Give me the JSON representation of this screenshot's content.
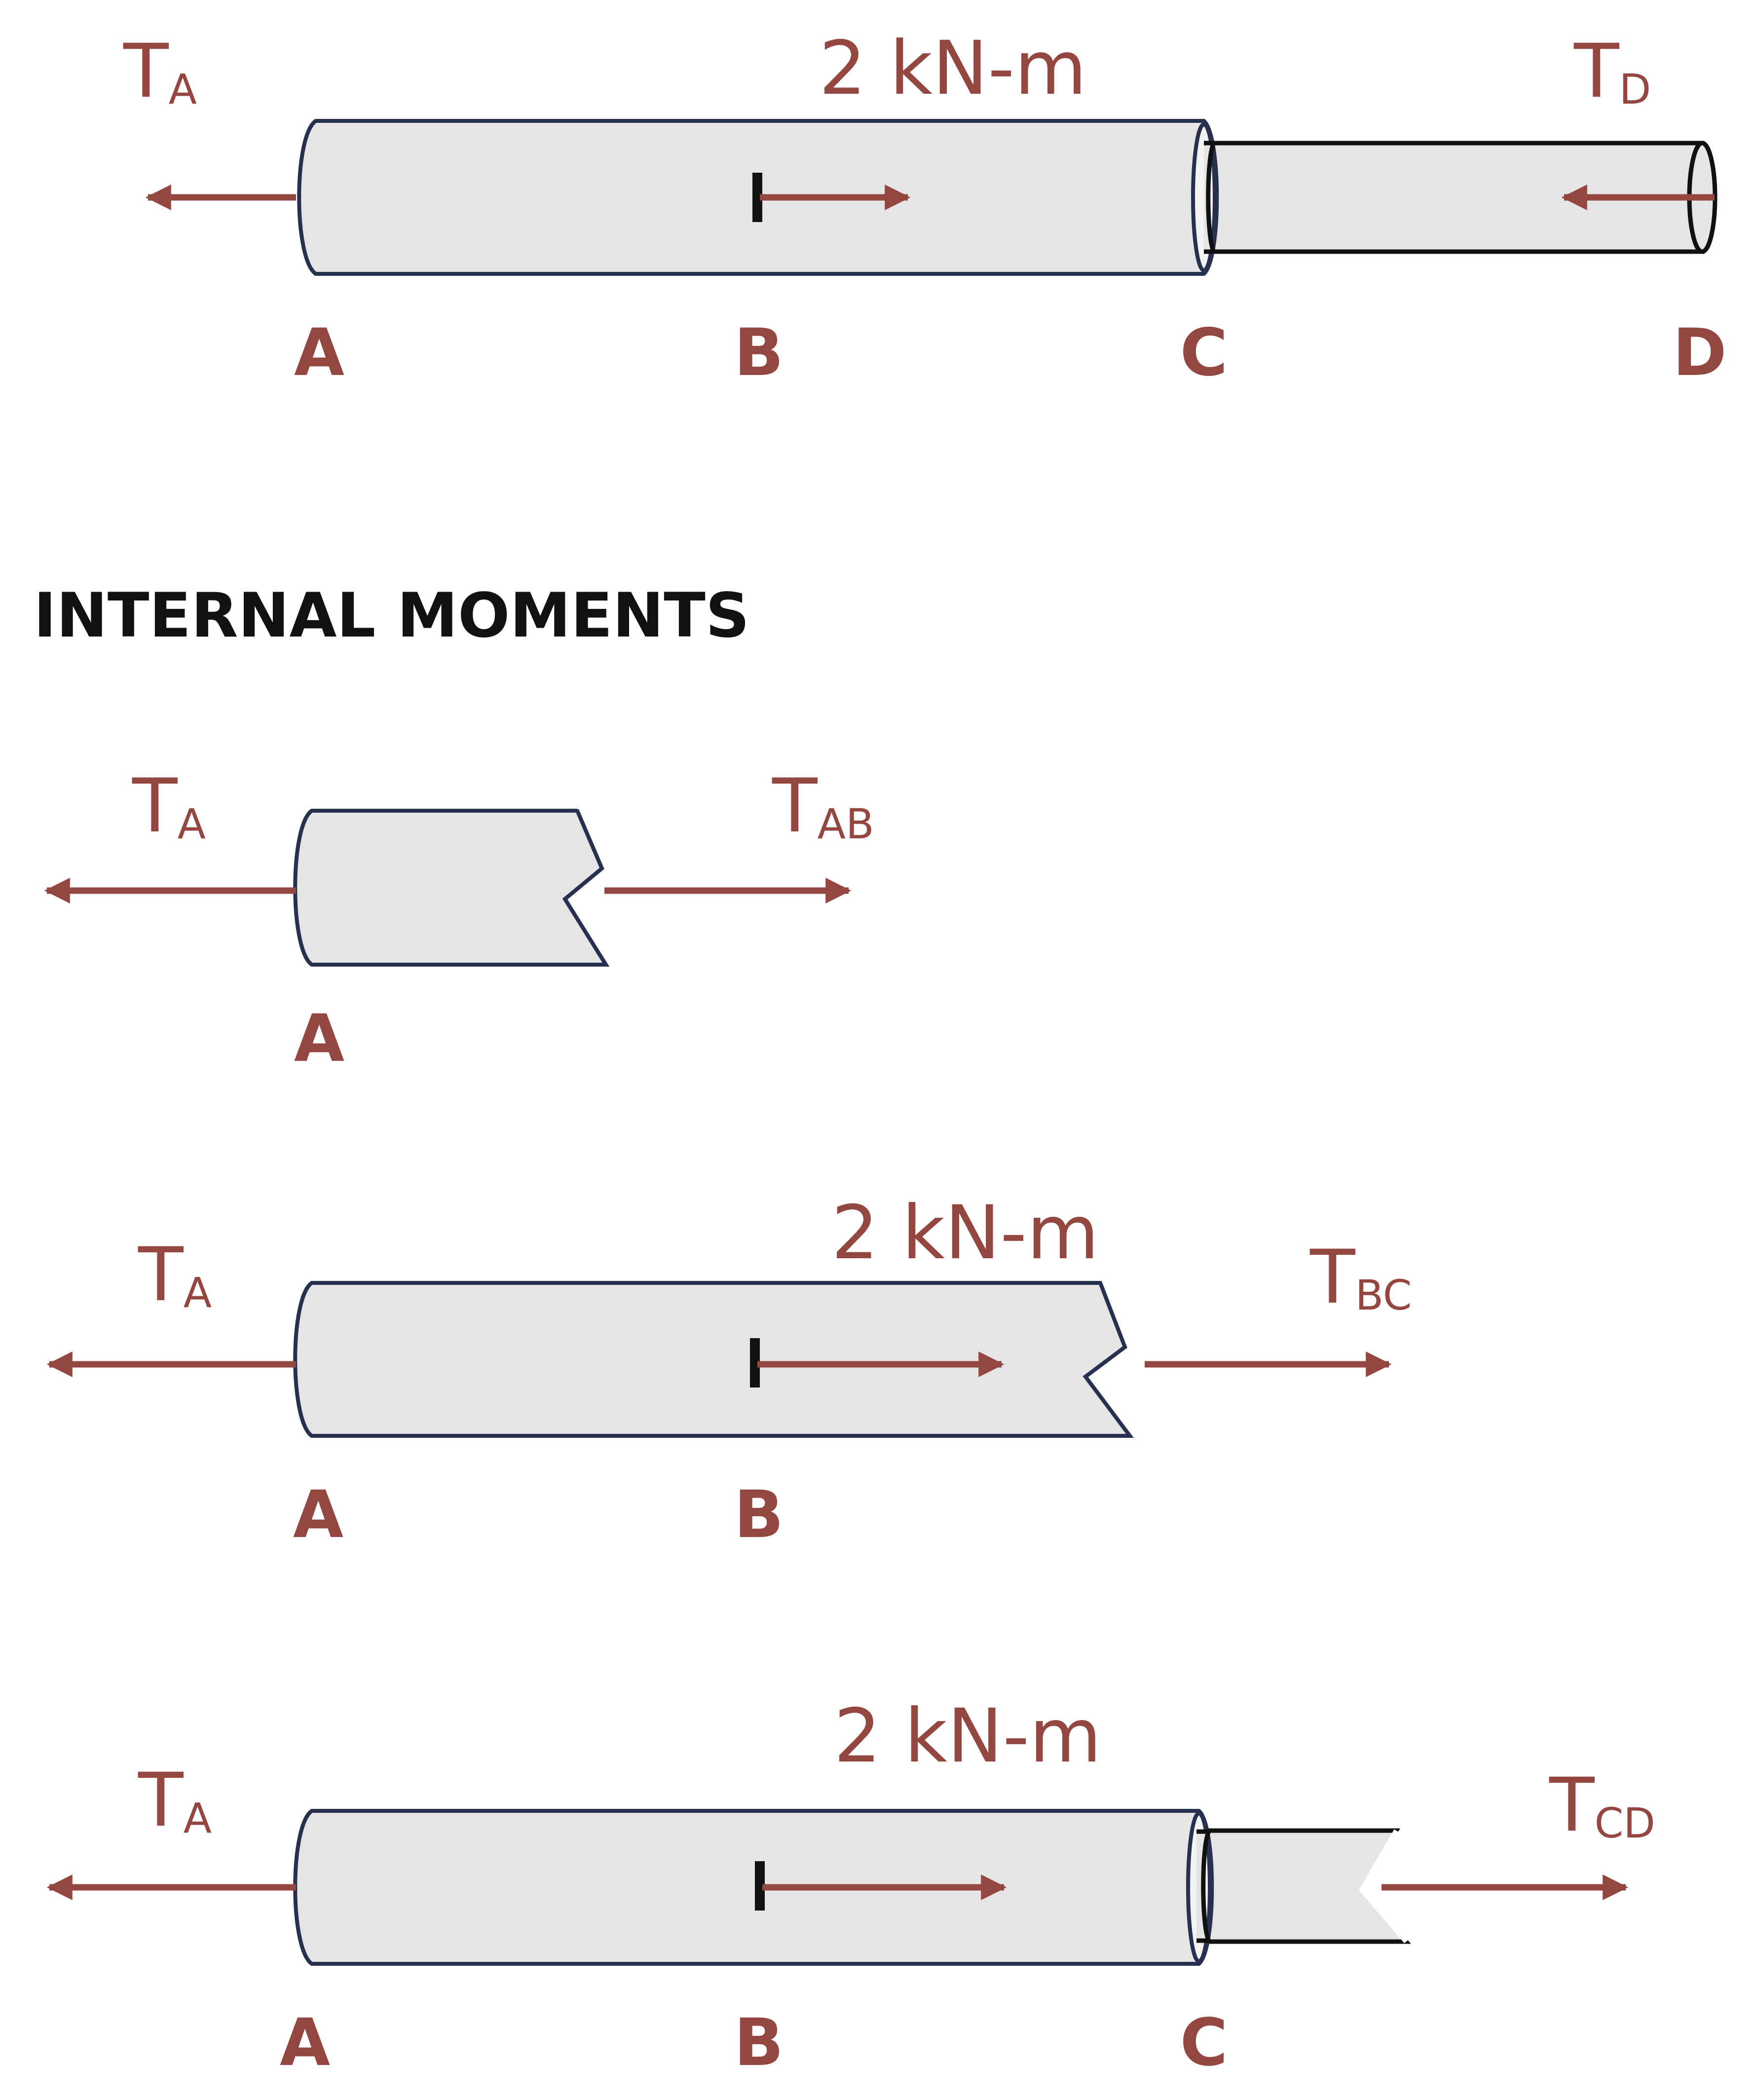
{
  "heading": "INTERNAL MOMENTS",
  "torque_label": "2 kN-m",
  "torque_symbol": "T",
  "subscripts": {
    "a": "A",
    "d": "D",
    "ab": "AB",
    "bc": "BC",
    "cd": "CD"
  },
  "points": {
    "a": "A",
    "b": "B",
    "c": "C",
    "d": "D"
  },
  "colors": {
    "accent": "#944740",
    "shaft_fill": "#e6e4e5",
    "outline": "#27314f",
    "text": "#111111"
  }
}
